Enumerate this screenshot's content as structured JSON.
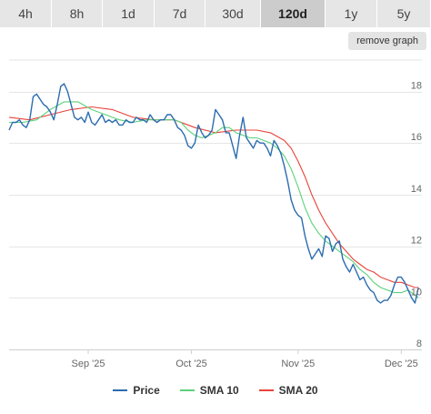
{
  "tabs": [
    {
      "label": "4h",
      "active": false
    },
    {
      "label": "8h",
      "active": false
    },
    {
      "label": "1d",
      "active": false
    },
    {
      "label": "7d",
      "active": false
    },
    {
      "label": "30d",
      "active": false
    },
    {
      "label": "120d",
      "active": true
    },
    {
      "label": "1y",
      "active": false
    },
    {
      "label": "5y",
      "active": false
    }
  ],
  "remove_graph_label": "remove graph",
  "colors": {
    "price": "#2b6cb0",
    "sma10": "#5dd17a",
    "sma20": "#e8433a",
    "grid": "#e6e6e6"
  },
  "chart_data": {
    "type": "line",
    "ylim": [
      8,
      19.5
    ],
    "xlim": [
      0,
      120
    ],
    "y_ticks": [
      8,
      10,
      12,
      14,
      16,
      18
    ],
    "x_ticks": [
      {
        "x": 23,
        "label": "Sep '25"
      },
      {
        "x": 53,
        "label": "Oct '25"
      },
      {
        "x": 84,
        "label": "Nov '25"
      },
      {
        "x": 114,
        "label": "Dec '25"
      }
    ],
    "grid": true,
    "legend_position": "bottom",
    "series": [
      {
        "name": "Price",
        "color": "#2b6cb0",
        "points": [
          [
            0,
            16.5
          ],
          [
            1,
            16.8
          ],
          [
            2,
            16.8
          ],
          [
            3,
            16.9
          ],
          [
            4,
            16.7
          ],
          [
            5,
            16.6
          ],
          [
            6,
            16.9
          ],
          [
            7,
            17.8
          ],
          [
            8,
            17.9
          ],
          [
            9,
            17.7
          ],
          [
            10,
            17.5
          ],
          [
            11,
            17.4
          ],
          [
            12,
            17.2
          ],
          [
            13,
            16.9
          ],
          [
            14,
            17.5
          ],
          [
            15,
            18.2
          ],
          [
            16,
            18.3
          ],
          [
            17,
            18.0
          ],
          [
            18,
            17.5
          ],
          [
            19,
            17.0
          ],
          [
            20,
            16.9
          ],
          [
            21,
            17.0
          ],
          [
            22,
            16.8
          ],
          [
            23,
            17.2
          ],
          [
            24,
            16.8
          ],
          [
            25,
            16.7
          ],
          [
            26,
            16.9
          ],
          [
            27,
            17.1
          ],
          [
            28,
            16.8
          ],
          [
            29,
            16.9
          ],
          [
            30,
            16.8
          ],
          [
            31,
            16.9
          ],
          [
            32,
            16.7
          ],
          [
            33,
            16.7
          ],
          [
            34,
            16.9
          ],
          [
            35,
            16.8
          ],
          [
            36,
            16.8
          ],
          [
            37,
            17.0
          ],
          [
            38,
            16.9
          ],
          [
            39,
            16.9
          ],
          [
            40,
            16.8
          ],
          [
            41,
            17.1
          ],
          [
            42,
            16.9
          ],
          [
            43,
            16.8
          ],
          [
            44,
            16.9
          ],
          [
            45,
            16.9
          ],
          [
            46,
            17.1
          ],
          [
            47,
            17.1
          ],
          [
            48,
            16.9
          ],
          [
            49,
            16.6
          ],
          [
            50,
            16.5
          ],
          [
            51,
            16.3
          ],
          [
            52,
            15.9
          ],
          [
            53,
            15.8
          ],
          [
            54,
            16.0
          ],
          [
            55,
            16.7
          ],
          [
            56,
            16.4
          ],
          [
            57,
            16.2
          ],
          [
            58,
            16.3
          ],
          [
            59,
            16.5
          ],
          [
            60,
            17.3
          ],
          [
            61,
            17.1
          ],
          [
            62,
            16.9
          ],
          [
            63,
            16.4
          ],
          [
            64,
            16.4
          ],
          [
            65,
            15.9
          ],
          [
            66,
            15.4
          ],
          [
            67,
            16.3
          ],
          [
            68,
            17.0
          ],
          [
            69,
            16.2
          ],
          [
            70,
            16.0
          ],
          [
            71,
            15.8
          ],
          [
            72,
            16.1
          ],
          [
            73,
            16.0
          ],
          [
            74,
            16.0
          ],
          [
            75,
            15.8
          ],
          [
            76,
            15.5
          ],
          [
            77,
            16.1
          ],
          [
            78,
            15.9
          ],
          [
            79,
            15.6
          ],
          [
            80,
            15.1
          ],
          [
            81,
            14.5
          ],
          [
            82,
            13.8
          ],
          [
            83,
            13.4
          ],
          [
            84,
            13.2
          ],
          [
            85,
            13.1
          ],
          [
            86,
            12.4
          ],
          [
            87,
            11.9
          ],
          [
            88,
            11.5
          ],
          [
            89,
            11.7
          ],
          [
            90,
            11.9
          ],
          [
            91,
            11.6
          ],
          [
            92,
            12.4
          ],
          [
            93,
            12.3
          ],
          [
            94,
            11.8
          ],
          [
            95,
            12.1
          ],
          [
            96,
            12.2
          ],
          [
            97,
            11.5
          ],
          [
            98,
            11.2
          ],
          [
            99,
            11.0
          ],
          [
            100,
            11.3
          ],
          [
            101,
            11.0
          ],
          [
            102,
            10.7
          ],
          [
            103,
            10.8
          ],
          [
            104,
            10.5
          ],
          [
            105,
            10.3
          ],
          [
            106,
            10.2
          ],
          [
            107,
            9.9
          ],
          [
            108,
            9.8
          ],
          [
            109,
            9.9
          ],
          [
            110,
            9.9
          ],
          [
            111,
            10.1
          ],
          [
            112,
            10.5
          ],
          [
            113,
            10.8
          ],
          [
            114,
            10.8
          ],
          [
            115,
            10.6
          ],
          [
            116,
            10.3
          ],
          [
            117,
            10.0
          ],
          [
            118,
            9.8
          ],
          [
            119,
            10.4
          ]
        ]
      },
      {
        "name": "SMA 10",
        "color": "#5dd17a",
        "points": [
          [
            0,
            16.8
          ],
          [
            4,
            16.8
          ],
          [
            8,
            16.9
          ],
          [
            12,
            17.3
          ],
          [
            16,
            17.6
          ],
          [
            20,
            17.6
          ],
          [
            24,
            17.3
          ],
          [
            28,
            17.1
          ],
          [
            32,
            16.9
          ],
          [
            36,
            16.8
          ],
          [
            40,
            16.9
          ],
          [
            44,
            16.9
          ],
          [
            48,
            16.9
          ],
          [
            50,
            16.8
          ],
          [
            52,
            16.5
          ],
          [
            54,
            16.3
          ],
          [
            56,
            16.2
          ],
          [
            58,
            16.3
          ],
          [
            60,
            16.4
          ],
          [
            62,
            16.6
          ],
          [
            64,
            16.6
          ],
          [
            66,
            16.4
          ],
          [
            68,
            16.3
          ],
          [
            70,
            16.2
          ],
          [
            72,
            16.2
          ],
          [
            74,
            16.1
          ],
          [
            76,
            16.0
          ],
          [
            78,
            15.8
          ],
          [
            80,
            15.5
          ],
          [
            82,
            15.0
          ],
          [
            84,
            14.3
          ],
          [
            86,
            13.5
          ],
          [
            88,
            12.9
          ],
          [
            90,
            12.5
          ],
          [
            92,
            12.2
          ],
          [
            94,
            12.0
          ],
          [
            96,
            11.8
          ],
          [
            98,
            11.6
          ],
          [
            100,
            11.4
          ],
          [
            102,
            11.1
          ],
          [
            104,
            10.9
          ],
          [
            106,
            10.6
          ],
          [
            108,
            10.4
          ],
          [
            110,
            10.3
          ],
          [
            112,
            10.2
          ],
          [
            114,
            10.2
          ],
          [
            116,
            10.3
          ],
          [
            118,
            10.1
          ],
          [
            119,
            10.0
          ]
        ]
      },
      {
        "name": "SMA 20",
        "color": "#e8433a",
        "points": [
          [
            0,
            17.0
          ],
          [
            6,
            16.9
          ],
          [
            12,
            17.1
          ],
          [
            18,
            17.3
          ],
          [
            24,
            17.4
          ],
          [
            30,
            17.3
          ],
          [
            36,
            17.0
          ],
          [
            42,
            16.9
          ],
          [
            48,
            16.9
          ],
          [
            54,
            16.6
          ],
          [
            60,
            16.4
          ],
          [
            66,
            16.5
          ],
          [
            72,
            16.5
          ],
          [
            76,
            16.4
          ],
          [
            80,
            16.1
          ],
          [
            82,
            15.8
          ],
          [
            84,
            15.3
          ],
          [
            86,
            14.7
          ],
          [
            88,
            14.0
          ],
          [
            90,
            13.4
          ],
          [
            92,
            12.9
          ],
          [
            94,
            12.5
          ],
          [
            96,
            12.1
          ],
          [
            98,
            11.8
          ],
          [
            100,
            11.5
          ],
          [
            102,
            11.3
          ],
          [
            104,
            11.1
          ],
          [
            106,
            11.0
          ],
          [
            108,
            10.8
          ],
          [
            110,
            10.7
          ],
          [
            112,
            10.6
          ],
          [
            114,
            10.6
          ],
          [
            116,
            10.5
          ],
          [
            118,
            10.4
          ],
          [
            119,
            10.4
          ]
        ]
      }
    ]
  }
}
